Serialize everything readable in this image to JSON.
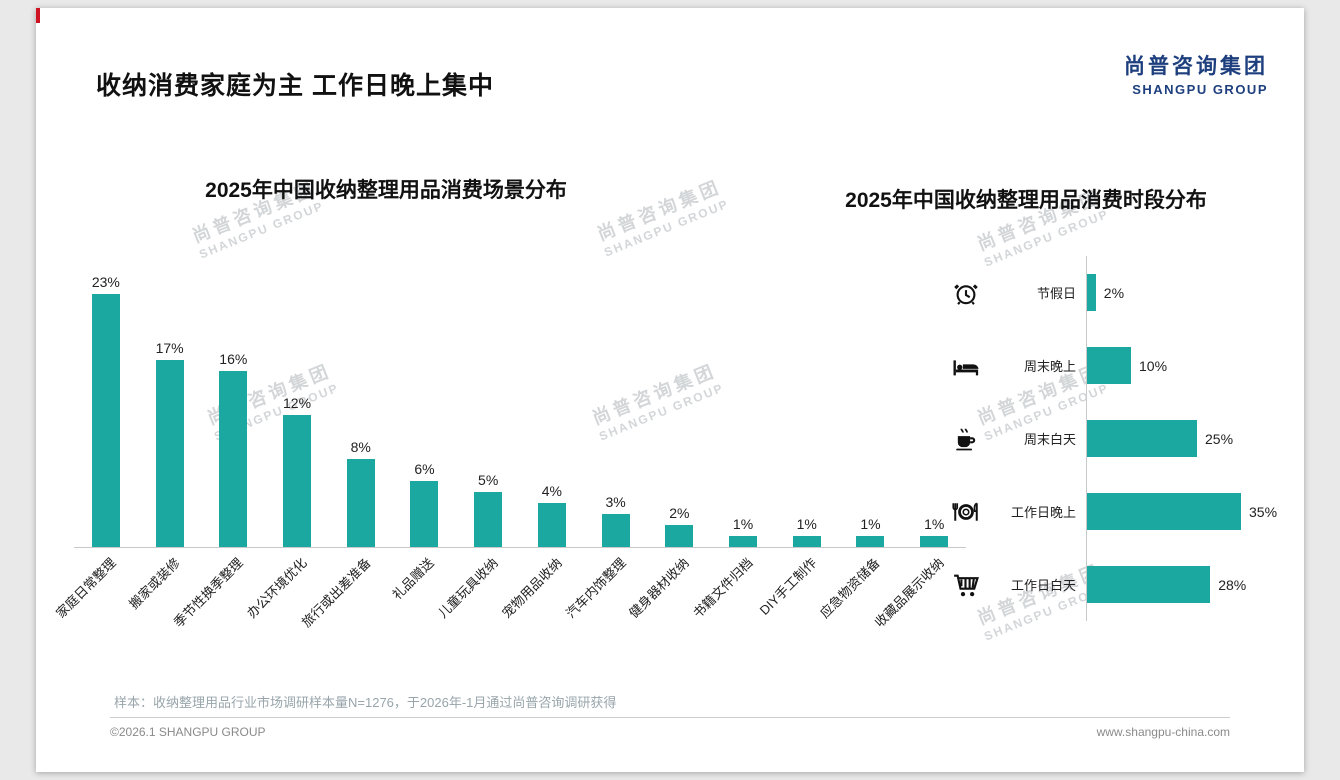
{
  "page": {
    "title": "收纳消费家庭为主 工作日晚上集中",
    "logo": {
      "cn": "尚普咨询集团",
      "en": "SHANGPU GROUP"
    },
    "watermark": {
      "cn": "尚普咨询集团",
      "en": "SHANGPU GROUP"
    },
    "footer": {
      "note": "样本：收纳整理用品行业市场调研样本量N=1276，于2026年-1月通过尚普咨询调研获得",
      "copyright": "©2026.1 SHANGPU GROUP",
      "website": "www.shangpu-china.com"
    },
    "accent_color": "#1aa8a1",
    "logo_color": "#1e3f7e"
  },
  "chart_data": [
    {
      "type": "bar",
      "orientation": "vertical",
      "title": "2025年中国收纳整理用品消费场景分布",
      "categories": [
        "家庭日常整理",
        "搬家或装修",
        "季节性换季整理",
        "办公环境优化",
        "旅行或出差准备",
        "礼品赠送",
        "儿童玩具收纳",
        "宠物用品收纳",
        "汽车内饰整理",
        "健身器材收纳",
        "书籍文件归档",
        "DIY手工制作",
        "应急物资储备",
        "收藏品展示收纳"
      ],
      "values": [
        23,
        17,
        16,
        12,
        8,
        6,
        5,
        4,
        3,
        2,
        1,
        1,
        1,
        1
      ],
      "unit": "%",
      "bar_color": "#1aa8a1",
      "ylim": [
        0,
        25
      ],
      "grid": false,
      "data_labels": true,
      "legend": "none"
    },
    {
      "type": "bar",
      "orientation": "horizontal",
      "title": "2025年中国收纳整理用品消费时段分布",
      "categories": [
        "节假日",
        "周末晚上",
        "周末白天",
        "工作日晚上",
        "工作日白天"
      ],
      "values": [
        2,
        10,
        25,
        35,
        28
      ],
      "icons": [
        "alarm-clock-icon",
        "bed-icon",
        "coffee-icon",
        "dining-icon",
        "cart-icon"
      ],
      "unit": "%",
      "bar_color": "#1aa8a1",
      "xlim": [
        0,
        40
      ],
      "grid": false,
      "data_labels": true,
      "legend": "none"
    }
  ]
}
